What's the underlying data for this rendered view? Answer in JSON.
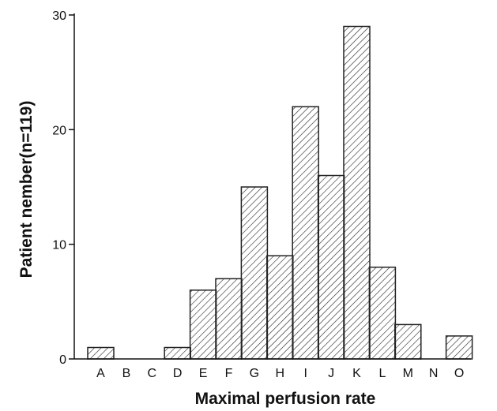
{
  "chart_data": {
    "type": "bar",
    "title": "",
    "xlabel": "Maximal perfusion rate",
    "ylabel": "Patient nember(n=119)",
    "categories": [
      "A",
      "B",
      "C",
      "D",
      "E",
      "F",
      "G",
      "H",
      "I",
      "J",
      "K",
      "L",
      "M",
      "N",
      "O"
    ],
    "values": [
      1,
      0,
      0,
      1,
      6,
      7,
      15,
      9,
      22,
      16,
      29,
      8,
      3,
      0,
      2
    ],
    "ylim": [
      0,
      30
    ],
    "yticks": [
      "0",
      "10",
      "20",
      "30"
    ],
    "bar_fill": "diagonal hatch",
    "bar_color": "#222222",
    "grid": false,
    "legend": "none"
  }
}
